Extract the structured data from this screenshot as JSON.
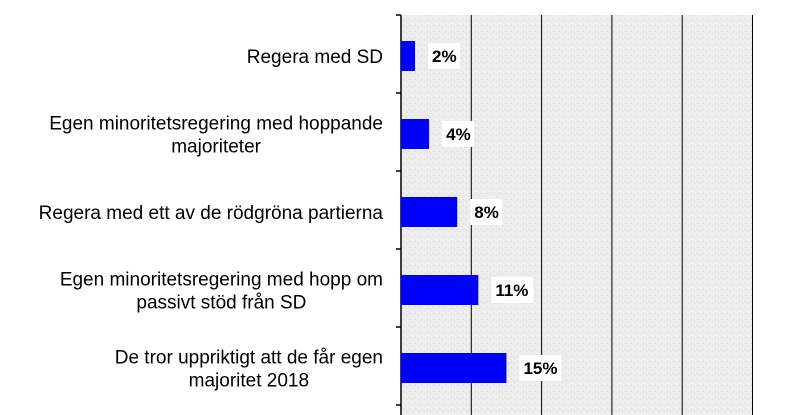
{
  "chart_data": {
    "type": "bar",
    "orientation": "horizontal",
    "title": "",
    "xlabel": "",
    "ylabel": "",
    "categories": [
      [
        "Regera med SD"
      ],
      [
        "Egen minoritetsregering med hoppande",
        "majoriteter"
      ],
      [
        "Regera med ett av de rödgröna partierna"
      ],
      [
        "Egen minoritetsregering med hopp om",
        "passivt stöd från SD"
      ],
      [
        "De tror uppriktigt att de får egen",
        "majoritet 2018"
      ]
    ],
    "values": [
      2,
      4,
      8,
      11,
      15
    ],
    "value_labels": [
      "2%",
      "4%",
      "8%",
      "11%",
      "15%"
    ],
    "xlim": [
      0,
      50
    ],
    "grid": true,
    "legend": "none",
    "colors": {
      "bar": "#0000ff",
      "plot_background": "#ebebeb",
      "gridline": "#000000",
      "label_background": "#ffffff"
    }
  }
}
